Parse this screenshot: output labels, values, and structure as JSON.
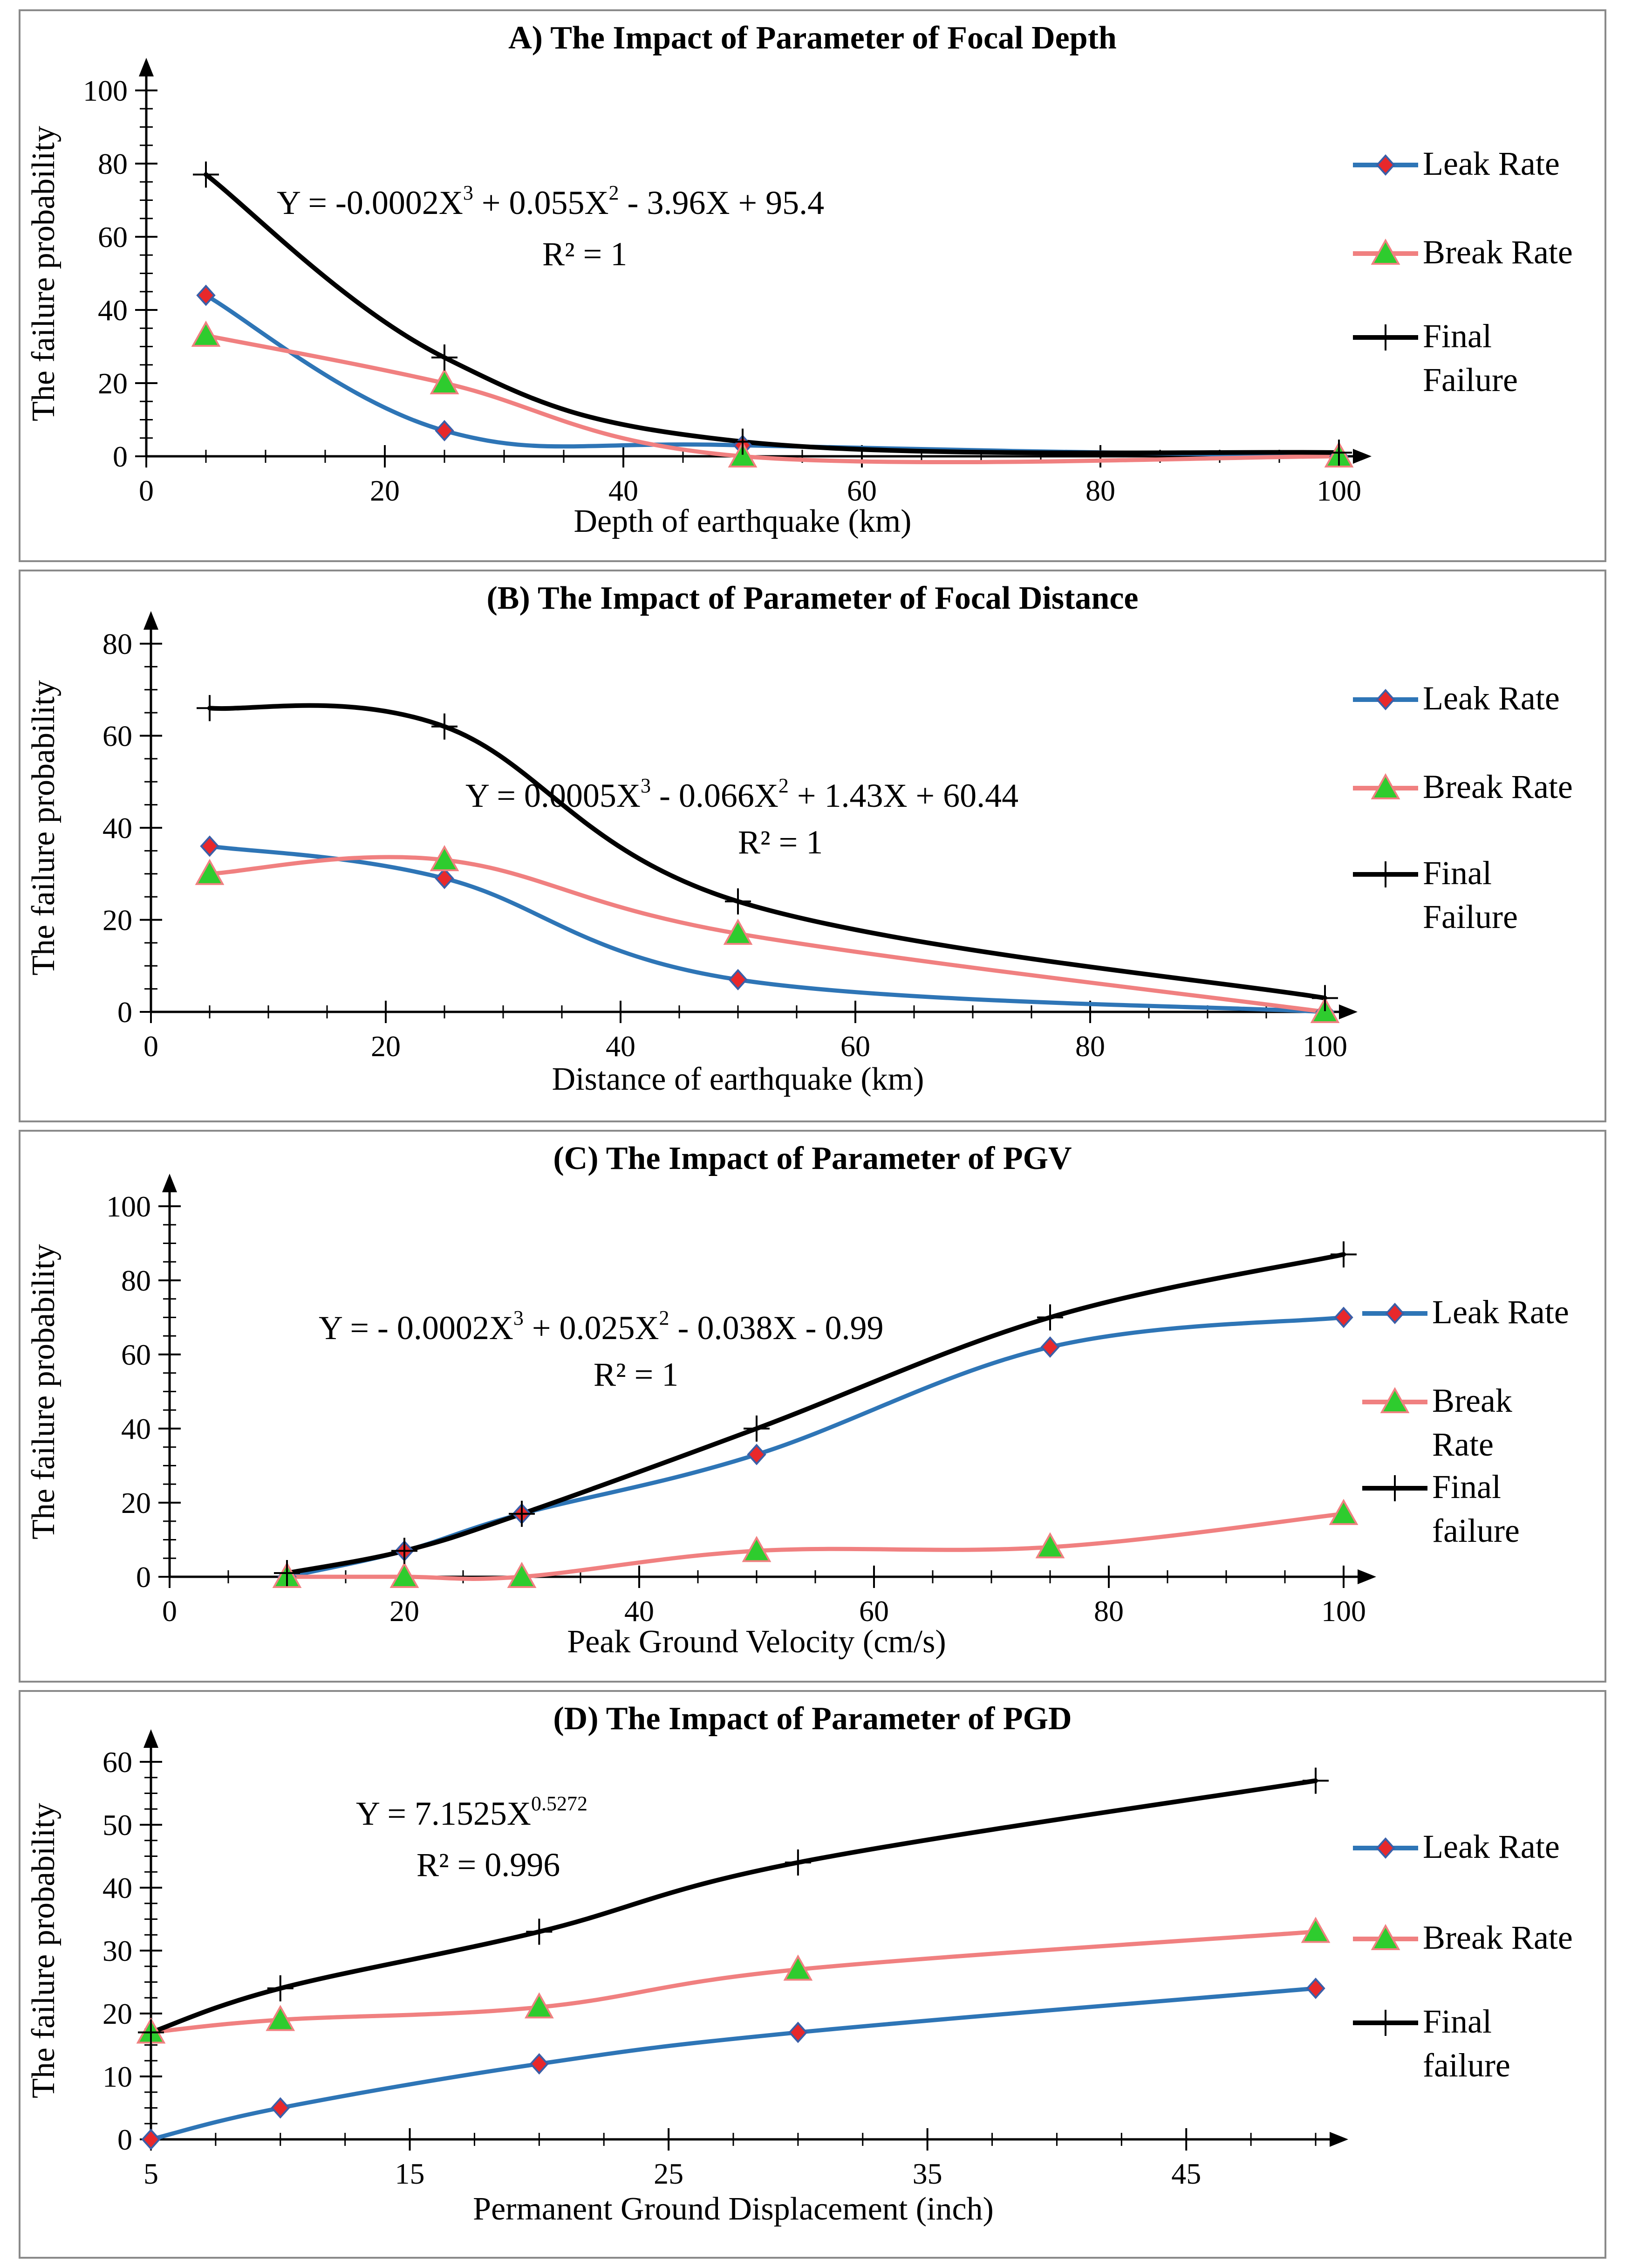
{
  "chart_data": [
    {
      "id": "A",
      "type": "line",
      "title": "A) The Impact of Parameter of Focal Depth",
      "xlabel": "Depth of earthquake (km)",
      "ylabel": "The failure probability",
      "xlim": [
        0,
        100
      ],
      "ylim": [
        0,
        100
      ],
      "xticks": [
        0,
        20,
        40,
        60,
        80,
        100
      ],
      "yticks": [
        0,
        20,
        40,
        60,
        80,
        100
      ],
      "equation": {
        "pre": "Y = -0.0002X",
        "sup1": "3",
        "mid": " + 0.055X",
        "sup2": "2",
        "post": " - 3.96X + 95.4"
      },
      "r2": "R² = 1",
      "series": [
        {
          "name": "Leak Rate",
          "color": "#2e75b6",
          "marker": "diamond",
          "x": [
            5,
            25,
            50,
            100
          ],
          "y": [
            44,
            7,
            3,
            0
          ]
        },
        {
          "name": "Break Rate",
          "color": "#f08080",
          "marker": "triangle",
          "x": [
            5,
            25,
            50,
            100
          ],
          "y": [
            33,
            20,
            0,
            0
          ]
        },
        {
          "name": "Final Failure",
          "color": "#000000",
          "marker": "plus",
          "x": [
            5,
            25,
            50,
            100
          ],
          "y": [
            77,
            27,
            4,
            1
          ]
        }
      ],
      "legend": [
        [
          "Leak Rate"
        ],
        [
          "Break Rate"
        ],
        [
          "Final",
          "Failure"
        ]
      ]
    },
    {
      "id": "B",
      "type": "line",
      "title": "(B) The Impact of Parameter of Focal Distance",
      "xlabel": "Distance of earthquake (km)",
      "ylabel": "The failure probability",
      "xlim": [
        0,
        100
      ],
      "ylim": [
        0,
        80
      ],
      "xticks": [
        0,
        20,
        40,
        60,
        80,
        100
      ],
      "yticks": [
        0,
        20,
        40,
        60,
        80
      ],
      "equation": {
        "pre": "Y = 0.0005X",
        "sup1": "3",
        "mid": " - 0.066X",
        "sup2": "2",
        "post": " + 1.43X + 60.44"
      },
      "r2": "R² = 1",
      "series": [
        {
          "name": "Leak Rate",
          "color": "#2e75b6",
          "marker": "diamond",
          "x": [
            5,
            25,
            50,
            100
          ],
          "y": [
            36,
            29,
            7,
            0
          ]
        },
        {
          "name": "Break Rate",
          "color": "#f08080",
          "marker": "triangle",
          "x": [
            5,
            25,
            50,
            100
          ],
          "y": [
            30,
            33,
            17,
            0
          ]
        },
        {
          "name": "Final Failure",
          "color": "#000000",
          "marker": "plus",
          "x": [
            5,
            25,
            50,
            100
          ],
          "y": [
            66,
            62,
            24,
            3
          ]
        }
      ],
      "legend": [
        [
          "Leak Rate"
        ],
        [
          "Break Rate"
        ],
        [
          "Final",
          "Failure"
        ]
      ]
    },
    {
      "id": "C",
      "type": "line",
      "title": "(C) The Impact of Parameter of PGV",
      "xlabel": "Peak Ground Velocity (cm/s)",
      "ylabel": "The failure probability",
      "xlim": [
        0,
        100
      ],
      "ylim": [
        0,
        100
      ],
      "xticks": [
        0,
        20,
        40,
        60,
        80,
        100
      ],
      "yticks": [
        0,
        20,
        40,
        60,
        80,
        100
      ],
      "equation": {
        "pre": "Y = - 0.0002X",
        "sup1": "3",
        "mid": " + 0.025X",
        "sup2": "2",
        "post": " - 0.038X - 0.99"
      },
      "r2": "R² = 1",
      "series": [
        {
          "name": "Leak Rate",
          "color": "#2e75b6",
          "marker": "diamond",
          "x": [
            10,
            20,
            30,
            50,
            75,
            100
          ],
          "y": [
            0,
            7,
            17,
            33,
            62,
            70
          ]
        },
        {
          "name": "Break Rate",
          "color": "#f08080",
          "marker": "triangle",
          "x": [
            10,
            20,
            30,
            50,
            75,
            100
          ],
          "y": [
            0,
            0,
            0,
            7,
            8,
            17
          ]
        },
        {
          "name": "Final failure",
          "color": "#000000",
          "marker": "plus",
          "x": [
            10,
            20,
            30,
            50,
            75,
            100
          ],
          "y": [
            1,
            7,
            17,
            40,
            70,
            87
          ]
        }
      ],
      "legend": [
        [
          "Leak Rate"
        ],
        [
          "Break",
          "Rate"
        ],
        [
          "Final",
          "failure"
        ]
      ]
    },
    {
      "id": "D",
      "type": "line",
      "title": "(D) The Impact of Parameter of PGD",
      "xlabel": "Permanent Ground Displacement (inch)",
      "ylabel": "The failure probability",
      "xlim": [
        5,
        50
      ],
      "ylim": [
        0,
        60
      ],
      "xticks": [
        5,
        15,
        25,
        35,
        45
      ],
      "yticks": [
        0,
        10,
        20,
        30,
        40,
        50,
        60
      ],
      "equation": {
        "pre": "Y = 7.1525X",
        "sup1": "0.5272",
        "mid": "",
        "sup2": "",
        "post": ""
      },
      "r2": "R² = 0.996",
      "series": [
        {
          "name": "Leak Rate",
          "color": "#2e75b6",
          "marker": "diamond",
          "x": [
            5,
            10,
            20,
            30,
            50
          ],
          "y": [
            0,
            5,
            12,
            17,
            24
          ]
        },
        {
          "name": "Break Rate",
          "color": "#f08080",
          "marker": "triangle",
          "x": [
            5,
            10,
            20,
            30,
            50
          ],
          "y": [
            17,
            19,
            21,
            27,
            33
          ]
        },
        {
          "name": "Final failure",
          "color": "#000000",
          "marker": "plus",
          "x": [
            5,
            10,
            20,
            30,
            50
          ],
          "y": [
            17,
            24,
            33,
            44,
            57
          ]
        }
      ],
      "legend": [
        [
          "Leak Rate"
        ],
        [
          "Break Rate"
        ],
        [
          "Final",
          "failure"
        ]
      ]
    }
  ]
}
